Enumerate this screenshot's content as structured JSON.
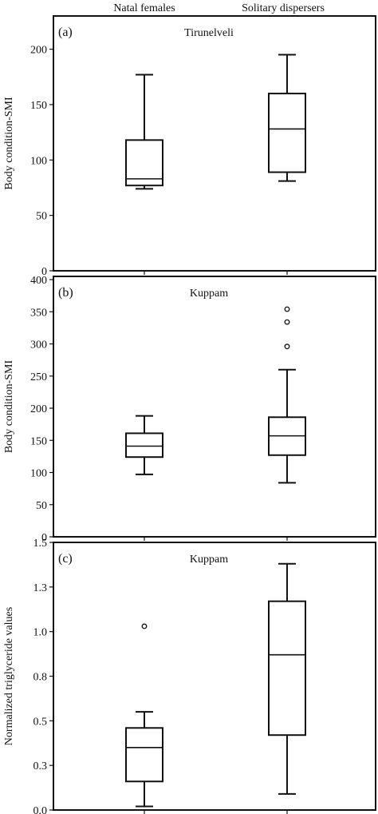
{
  "header": {
    "group_labels": [
      "Natal females",
      "Solitary dispersers"
    ]
  },
  "chart_data": [
    {
      "type": "box",
      "panel_label": "(a)",
      "title": "Tirunelveli",
      "ylabel": "Body condition-SMI",
      "ylim": [
        0,
        230
      ],
      "yticks": [
        0,
        50,
        100,
        150,
        200
      ],
      "ytick_labels": [
        "0",
        "50",
        "100",
        "150",
        "200"
      ],
      "categories": [
        "Natal females",
        "Solitary dispersers"
      ],
      "boxes": [
        {
          "whisker_low": 74,
          "q1": 77,
          "median": 83,
          "q3": 118,
          "whisker_high": 177,
          "outliers": []
        },
        {
          "whisker_low": 81,
          "q1": 89,
          "median": 128,
          "q3": 160,
          "whisker_high": 195,
          "outliers": []
        }
      ]
    },
    {
      "type": "box",
      "panel_label": "(b)",
      "title": "Kuppam",
      "ylabel": "Body condition-SMI",
      "ylim": [
        0,
        405
      ],
      "yticks": [
        0,
        50,
        100,
        150,
        200,
        250,
        300,
        350,
        400
      ],
      "ytick_labels": [
        "0",
        "50",
        "100",
        "150",
        "200",
        "250",
        "300",
        "350",
        "400"
      ],
      "categories": [
        "Natal females",
        "Solitary dispersers"
      ],
      "boxes": [
        {
          "whisker_low": 97,
          "q1": 124,
          "median": 141,
          "q3": 161,
          "whisker_high": 188,
          "outliers": []
        },
        {
          "whisker_low": 84,
          "q1": 127,
          "median": 157,
          "q3": 186,
          "whisker_high": 260,
          "outliers": [
            296,
            334,
            354
          ]
        }
      ]
    },
    {
      "type": "box",
      "panel_label": "(c)",
      "title": "Kuppam",
      "ylabel": "Normalized triglyceride values",
      "ylim": [
        0,
        1.5
      ],
      "yticks": [
        0,
        0.25,
        0.5,
        0.75,
        1.0,
        1.25,
        1.5
      ],
      "ytick_labels": [
        "0.0",
        "0.3",
        "0.5",
        "0.8",
        "1.0",
        "1.3",
        "1.5"
      ],
      "categories": [
        "Natal females",
        "Solitary dispersers"
      ],
      "boxes": [
        {
          "whisker_low": 0.02,
          "q1": 0.16,
          "median": 0.35,
          "q3": 0.46,
          "whisker_high": 0.55,
          "outliers": [
            1.03
          ]
        },
        {
          "whisker_low": 0.09,
          "q1": 0.42,
          "median": 0.87,
          "q3": 1.17,
          "whisker_high": 1.38,
          "outliers": []
        }
      ]
    }
  ]
}
